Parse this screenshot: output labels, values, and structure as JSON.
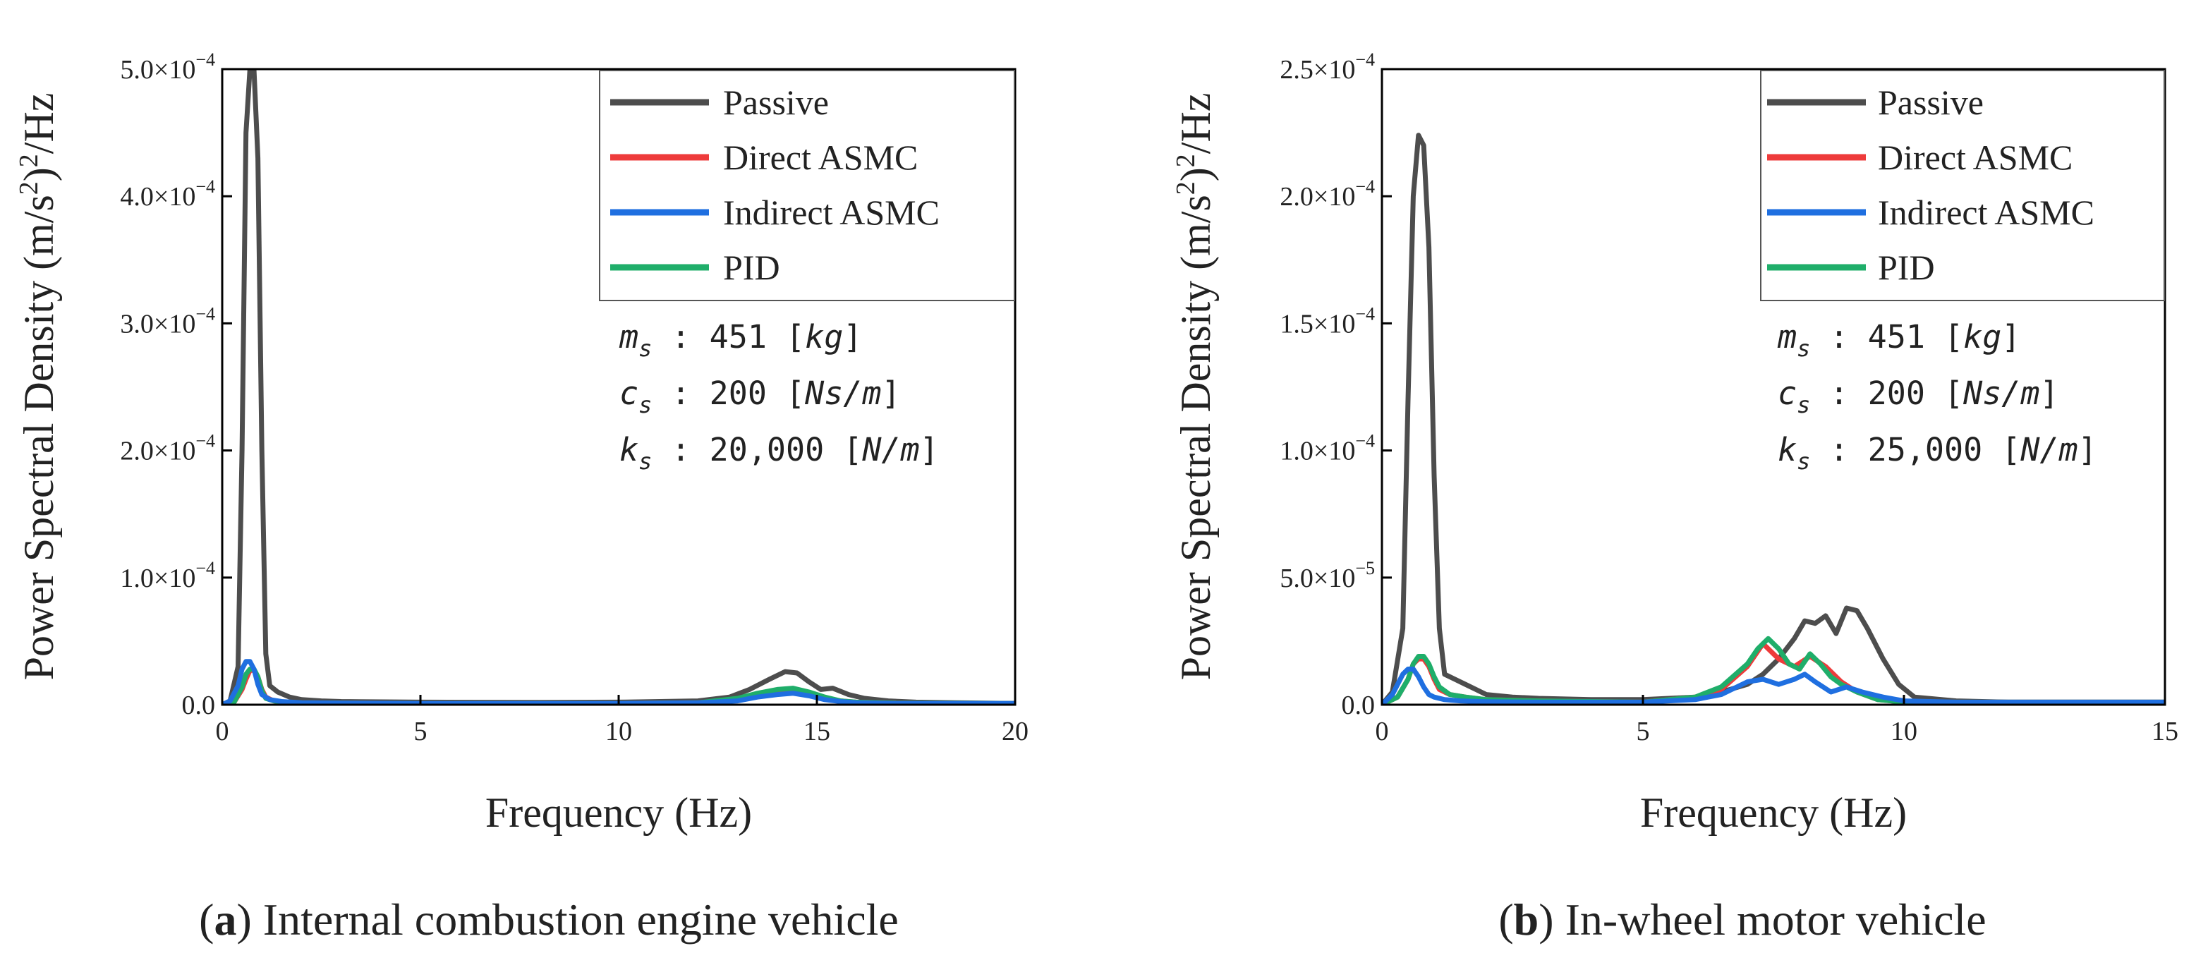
{
  "colors": {
    "Passive": "#4d4d4d",
    "Direct ASMC": "#ee3b3b",
    "Indirect ASMC": "#1f6fe0",
    "PID": "#1fae6a",
    "axis": "#000000",
    "text": "#222222"
  },
  "chart_data": [
    {
      "type": "line",
      "title": "",
      "caption": {
        "letter": "a",
        "text": "Internal combustion engine vehicle"
      },
      "xlabel": "Frequency (Hz)",
      "ylabel_main": "Power Spectral Density (m/s",
      "ylabel_sup_inner": "2",
      "ylabel_mid": ")",
      "ylabel_sup_outer": "2",
      "ylabel_tail": "/Hz",
      "xlim": [
        0,
        20
      ],
      "ylim": [
        0,
        0.0005
      ],
      "xticks": [
        0,
        5,
        10,
        15,
        20
      ],
      "yticks": [
        {
          "value": 0,
          "label": "0.0"
        },
        {
          "value": 0.0001,
          "label": "1.0×10",
          "exp": "−4"
        },
        {
          "value": 0.0002,
          "label": "2.0×10",
          "exp": "−4"
        },
        {
          "value": 0.0003,
          "label": "3.0×10",
          "exp": "−4"
        },
        {
          "value": 0.0004,
          "label": "4.0×10",
          "exp": "−4"
        },
        {
          "value": 0.0005,
          "label": "5.0×10",
          "exp": "−4"
        }
      ],
      "legend": [
        "Passive",
        "Direct ASMC",
        "Indirect ASMC",
        "PID"
      ],
      "legend_position": "top-right",
      "params": [
        {
          "sym": "m",
          "sub": "s",
          "value": " : 451  [",
          "unit": "kg",
          "close": "]"
        },
        {
          "sym": "c",
          "sub": "s",
          "value": " : 200 [",
          "unit": "Ns/m",
          "close": "]"
        },
        {
          "sym": "k",
          "sub": "s",
          "value": " : 20,000 [",
          "unit": "N/m",
          "close": "]"
        }
      ],
      "series": [
        {
          "name": "Passive",
          "x": [
            0,
            0.2,
            0.4,
            0.5,
            0.6,
            0.7,
            0.8,
            0.9,
            1.0,
            1.1,
            1.2,
            1.4,
            1.7,
            2.0,
            2.5,
            3,
            5,
            8,
            10,
            12,
            12.8,
            13.3,
            13.8,
            14.2,
            14.5,
            14.8,
            15.1,
            15.4,
            15.8,
            16.2,
            16.8,
            17.5,
            18.5,
            20
          ],
          "y": [
            0,
            3e-06,
            3e-05,
            0.0002,
            0.00045,
            0.0005,
            0.0005,
            0.00043,
            0.0002,
            4e-05,
            1.5e-05,
            1e-05,
            6e-06,
            4e-06,
            3e-06,
            2.5e-06,
            2e-06,
            1.8e-06,
            2e-06,
            3e-06,
            6e-06,
            1.2e-05,
            2e-05,
            2.6e-05,
            2.5e-05,
            1.8e-05,
            1.2e-05,
            1.3e-05,
            8e-06,
            5e-06,
            3e-06,
            2e-06,
            1.5e-06,
            1e-06
          ]
        },
        {
          "name": "Direct ASMC",
          "x": [
            0,
            0.3,
            0.5,
            0.6,
            0.7,
            0.8,
            0.9,
            1.0,
            1.1,
            1.3,
            1.6,
            2,
            3,
            5,
            10,
            12,
            13,
            13.5,
            14,
            14.4,
            14.8,
            15.2,
            15.6,
            16,
            17,
            20
          ],
          "y": [
            0,
            2e-06,
            1.2e-05,
            2e-05,
            2.7e-05,
            2.7e-05,
            2.2e-05,
            1.2e-05,
            6e-06,
            3e-06,
            2e-06,
            1.5e-06,
            1.2e-06,
            1e-06,
            1e-06,
            1.5e-06,
            4e-06,
            8e-06,
            1.1e-05,
            1.2e-05,
            9e-06,
            5e-06,
            3e-06,
            2e-06,
            1.2e-06,
            1e-06
          ]
        },
        {
          "name": "Indirect ASMC",
          "x": [
            0,
            0.2,
            0.4,
            0.5,
            0.6,
            0.7,
            0.8,
            0.9,
            1.0,
            1.2,
            1.5,
            2,
            3,
            5,
            10,
            12,
            13,
            13.5,
            14,
            14.4,
            14.8,
            15.2,
            15.6,
            16,
            17,
            20
          ],
          "y": [
            0,
            3e-06,
            1.5e-05,
            2.8e-05,
            3.4e-05,
            3.4e-05,
            2.8e-05,
            1.6e-05,
            8e-06,
            4e-06,
            2.5e-06,
            1.5e-06,
            1.2e-06,
            1e-06,
            1e-06,
            1.5e-06,
            3e-06,
            6e-06,
            8e-06,
            9e-06,
            7e-06,
            4e-06,
            2.5e-06,
            1.5e-06,
            1e-06,
            1e-06
          ]
        },
        {
          "name": "PID",
          "x": [
            0,
            0.3,
            0.5,
            0.6,
            0.7,
            0.8,
            0.9,
            1.0,
            1.1,
            1.3,
            1.6,
            2,
            3,
            5,
            10,
            12,
            13,
            13.5,
            14,
            14.4,
            14.8,
            15.2,
            15.6,
            16,
            17,
            20
          ],
          "y": [
            0,
            2e-06,
            1.4e-05,
            2.4e-05,
            2.8e-05,
            2.8e-05,
            2.2e-05,
            1.1e-05,
            5e-06,
            3e-06,
            2e-06,
            1.5e-06,
            1.2e-06,
            1e-06,
            1e-06,
            1.5e-06,
            5e-06,
            9e-06,
            1.2e-05,
            1.3e-05,
            1e-05,
            6e-06,
            3e-06,
            2e-06,
            1.2e-06,
            1e-06
          ]
        }
      ]
    },
    {
      "type": "line",
      "title": "",
      "caption": {
        "letter": "b",
        "text": "In-wheel motor vehicle"
      },
      "xlabel": "Frequency (Hz)",
      "ylabel_main": "Power Spectral Density (m/s",
      "ylabel_sup_inner": "2",
      "ylabel_mid": ")",
      "ylabel_sup_outer": "2",
      "ylabel_tail": "/Hz",
      "xlim": [
        0,
        15
      ],
      "ylim": [
        0,
        0.00025
      ],
      "xticks": [
        0,
        5,
        10,
        15
      ],
      "yticks": [
        {
          "value": 0,
          "label": "0.0"
        },
        {
          "value": 5e-05,
          "label": "5.0×10",
          "exp": "−5"
        },
        {
          "value": 0.0001,
          "label": "1.0×10",
          "exp": "−4"
        },
        {
          "value": 0.00015,
          "label": "1.5×10",
          "exp": "−4"
        },
        {
          "value": 0.0002,
          "label": "2.0×10",
          "exp": "−4"
        },
        {
          "value": 0.00025,
          "label": "2.5×10",
          "exp": "−4"
        }
      ],
      "legend": [
        "Passive",
        "Direct ASMC",
        "Indirect ASMC",
        "PID"
      ],
      "legend_position": "top-right",
      "params": [
        {
          "sym": "m",
          "sub": "s",
          "value": " : 451  [",
          "unit": "kg",
          "close": "]"
        },
        {
          "sym": "c",
          "sub": "s",
          "value": " : 200 [",
          "unit": "Ns/m",
          "close": "]"
        },
        {
          "sym": "k",
          "sub": "s",
          "value": " : 25,000 [",
          "unit": "N/m",
          "close": "]"
        }
      ],
      "series": [
        {
          "name": "Passive",
          "x": [
            0,
            0.2,
            0.4,
            0.5,
            0.6,
            0.7,
            0.8,
            0.9,
            1.0,
            1.1,
            1.2,
            1.4,
            1.6,
            1.8,
            2,
            2.5,
            3,
            4,
            5,
            6,
            6.5,
            7,
            7.3,
            7.6,
            7.9,
            8.1,
            8.3,
            8.5,
            8.7,
            8.9,
            9.1,
            9.3,
            9.6,
            9.9,
            10.2,
            11,
            12,
            15
          ],
          "y": [
            0,
            5e-06,
            3e-05,
            0.00012,
            0.0002,
            0.000224,
            0.00022,
            0.00018,
            9e-05,
            3e-05,
            1.2e-05,
            1e-05,
            8e-06,
            6e-06,
            4e-06,
            3e-06,
            2.5e-06,
            2e-06,
            2e-06,
            3e-06,
            5e-06,
            8e-06,
            1.2e-05,
            1.8e-05,
            2.6e-05,
            3.3e-05,
            3.2e-05,
            3.5e-05,
            2.8e-05,
            3.8e-05,
            3.7e-05,
            3e-05,
            1.8e-05,
            8e-06,
            3e-06,
            1.5e-06,
            1e-06,
            1e-06
          ]
        },
        {
          "name": "Direct ASMC",
          "x": [
            0,
            0.3,
            0.5,
            0.6,
            0.7,
            0.8,
            0.9,
            1.0,
            1.1,
            1.3,
            1.6,
            2,
            3,
            5,
            6,
            6.5,
            7,
            7.3,
            7.6,
            7.9,
            8.2,
            8.5,
            8.8,
            9.1,
            9.5,
            10,
            11,
            15
          ],
          "y": [
            0,
            3e-06,
            1e-05,
            1.6e-05,
            1.8e-05,
            1.8e-05,
            1.5e-05,
            1e-05,
            6e-06,
            4e-06,
            3e-06,
            2e-06,
            1.5e-06,
            1e-06,
            3e-06,
            6e-06,
            1.5e-05,
            2.4e-05,
            1.8e-05,
            1.5e-05,
            1.9e-05,
            1.5e-05,
            9e-06,
            5e-06,
            2e-06,
            1e-06,
            1e-06,
            1e-06
          ]
        },
        {
          "name": "Indirect ASMC",
          "x": [
            0,
            0.2,
            0.4,
            0.5,
            0.6,
            0.7,
            0.8,
            0.9,
            1.0,
            1.2,
            1.5,
            2,
            3,
            5,
            6,
            6.5,
            7,
            7.3,
            7.6,
            7.9,
            8.1,
            8.3,
            8.6,
            8.9,
            9.2,
            9.6,
            10,
            11,
            15
          ],
          "y": [
            0,
            4e-06,
            1.2e-05,
            1.4e-05,
            1.4e-05,
            1.1e-05,
            7e-06,
            4e-06,
            3e-06,
            2e-06,
            1.5e-06,
            1.2e-06,
            1e-06,
            1e-06,
            2e-06,
            4e-06,
            9e-06,
            1e-05,
            8e-06,
            1e-05,
            1.2e-05,
            9e-06,
            5e-06,
            7e-06,
            5e-06,
            3e-06,
            1.5e-06,
            1e-06,
            1e-06
          ]
        },
        {
          "name": "PID",
          "x": [
            0,
            0.3,
            0.5,
            0.6,
            0.7,
            0.8,
            0.9,
            1.0,
            1.1,
            1.3,
            1.6,
            2,
            3,
            5,
            6,
            6.5,
            7,
            7.2,
            7.4,
            7.6,
            7.8,
            8.0,
            8.2,
            8.4,
            8.6,
            8.8,
            9.1,
            9.5,
            10,
            11,
            15
          ],
          "y": [
            0,
            3e-06,
            1e-05,
            1.6e-05,
            1.9e-05,
            1.9e-05,
            1.6e-05,
            1.1e-05,
            7e-06,
            4e-06,
            3e-06,
            2e-06,
            1.5e-06,
            1e-06,
            3e-06,
            7e-06,
            1.6e-05,
            2.2e-05,
            2.6e-05,
            2.2e-05,
            1.6e-05,
            1.4e-05,
            2e-05,
            1.6e-05,
            1.1e-05,
            8e-06,
            5e-06,
            2e-06,
            1e-06,
            1e-06,
            1e-06
          ]
        }
      ]
    }
  ]
}
